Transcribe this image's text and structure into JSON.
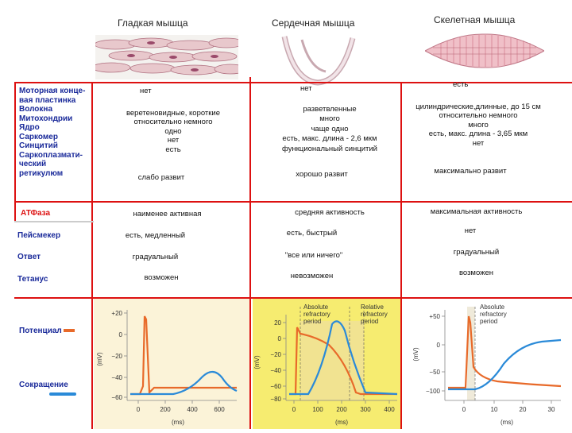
{
  "header": {
    "smooth": "Гладкая мышца",
    "cardiac": "Сердечная мышца",
    "skeletal": "Скелетная мышца"
  },
  "labels": {
    "structure": [
      "Моторная конце-",
      "вая пластинка",
      "Волокна",
      "Митохондрии",
      "Ядро",
      "Саркомер",
      "Синцитий",
      "Саркоплазмати-",
      "ческий",
      "ретикулюм"
    ],
    "atpase": "АТФаза",
    "pacemaker": "Пейсмекер",
    "response": "Ответ",
    "tetanus": "Тетанус",
    "potential": "Потенциал",
    "contraction": "Сокращение"
  },
  "smooth": {
    "structure": [
      "нет",
      "веретеновидные, короткие",
      "относительно немного",
      "одно",
      "нет",
      "есть"
    ],
    "sr": "слабо развит",
    "atpase": "наименее активная",
    "pacemaker": "есть, медленный",
    "response": "градуальный",
    "tetanus": "возможен"
  },
  "cardiac": {
    "structure": [
      "нет",
      "разветвленные",
      "много",
      "чаще одно",
      "есть, макс. длина - 2,6 мкм",
      "функциональный синцитий"
    ],
    "sr": "хорошо развит",
    "atpase": "средняя активность",
    "pacemaker": "есть, быстрый",
    "response": "\"все или ничего\"",
    "tetanus": "невозможен"
  },
  "skeletal": {
    "structure": [
      "есть",
      "цилиндрические,длинные, до 15 см",
      "относительно немного",
      "много",
      "есть, макс. длина - 3,65 мкм",
      "нет"
    ],
    "sr": "максимально развит",
    "atpase": "максимальная активность",
    "pacemaker": "нет",
    "response": "градуальный",
    "tetanus": "возможен"
  },
  "charts": {
    "smooth": {
      "ylabel": "(mV)",
      "xlabel": "(ms)",
      "yticks": [
        "+20",
        "0",
        "−20",
        "−40",
        "−60"
      ],
      "xticks": [
        "0",
        "200",
        "400",
        "600"
      ]
    },
    "cardiac": {
      "ylabel": "(mV)",
      "xlabel": "(ms)",
      "ann_abs": [
        "Absolute",
        "refractory",
        "period"
      ],
      "ann_rel": [
        "Relative",
        "refractory",
        "period"
      ],
      "yticks": [
        "20",
        "0",
        "−20",
        "−40",
        "−60",
        "−80"
      ],
      "xticks": [
        "0",
        "100",
        "200",
        "300",
        "400"
      ]
    },
    "skeletal": {
      "ylabel": "(mV)",
      "xlabel": "(ms)",
      "ann_abs": [
        "Absolute",
        "refractory",
        "period"
      ],
      "yticks": [
        "+50",
        "0",
        "−50",
        "−100"
      ],
      "xticks": [
        "0",
        "10",
        "20",
        "30"
      ]
    }
  },
  "colors": {
    "potential": "#e86a2a",
    "contraction": "#2a8ad8",
    "grid": "#dd1111",
    "label": "#1a2a9a"
  }
}
